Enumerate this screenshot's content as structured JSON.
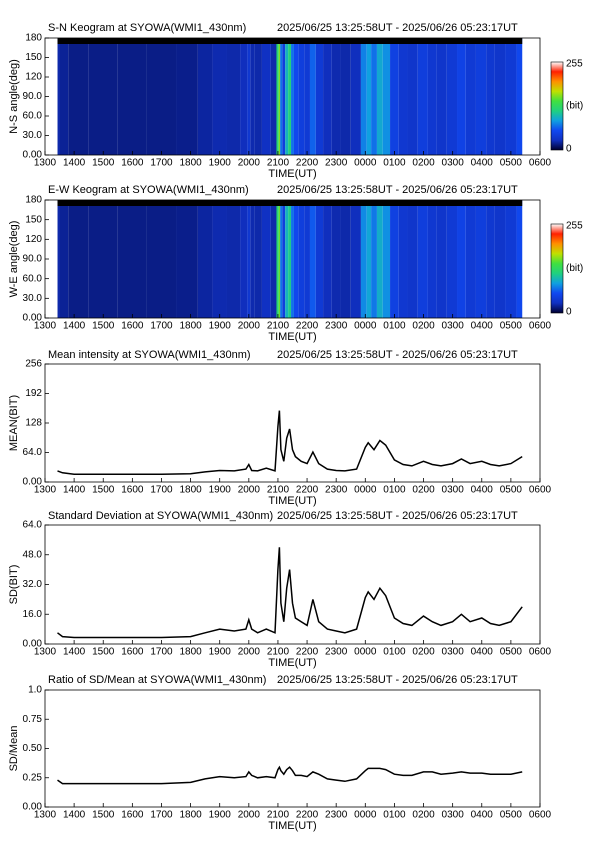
{
  "chart_data": [
    {
      "type": "heatmap",
      "title": "S-N Keogram at SYOWA(WMI1_430nm)",
      "time_range": "2025/06/25 13:25:58UT - 2025/06/26 05:23:17UT",
      "xlabel": "TIME(UT)",
      "ylabel": "N-S angle(deg)",
      "colorbar_label": "(bit)",
      "xlim": [
        13,
        30
      ],
      "ylim": [
        0,
        180
      ],
      "clim": [
        0,
        255
      ],
      "colorscale": [
        "#000030",
        "#1030c0",
        "#1048f0",
        "#10a0e0",
        "#20d080",
        "#40e040",
        "#c0e000",
        "#ff9000",
        "#ff2000",
        "#ffffff"
      ],
      "xticks": [
        {
          "value": 13,
          "label": "1300"
        },
        {
          "value": 14,
          "label": "1400"
        },
        {
          "value": 15,
          "label": "1500"
        },
        {
          "value": 16,
          "label": "1600"
        },
        {
          "value": 17,
          "label": "1700"
        },
        {
          "value": 18,
          "label": "1800"
        },
        {
          "value": 19,
          "label": "1900"
        },
        {
          "value": 20,
          "label": "2000"
        },
        {
          "value": 21,
          "label": "2100"
        },
        {
          "value": 22,
          "label": "2200"
        },
        {
          "value": 23,
          "label": "2300"
        },
        {
          "value": 24,
          "label": "0000"
        },
        {
          "value": 25,
          "label": "0100"
        },
        {
          "value": 26,
          "label": "0200"
        },
        {
          "value": 27,
          "label": "0300"
        },
        {
          "value": 28,
          "label": "0400"
        },
        {
          "value": 29,
          "label": "0500"
        },
        {
          "value": 30,
          "label": "0600"
        }
      ],
      "yticks": [
        {
          "value": 0,
          "label": "0.00"
        },
        {
          "value": 30,
          "label": "30.0"
        },
        {
          "value": 60,
          "label": "60.0"
        },
        {
          "value": 90,
          "label": "90.0"
        },
        120,
        150,
        180
      ],
      "x": [
        13.43,
        13.6,
        14,
        15,
        16,
        17,
        18,
        18.5,
        19,
        19.5,
        19.9,
        20.0,
        20.1,
        20.3,
        20.6,
        20.9,
        21.0,
        21.05,
        21.1,
        21.2,
        21.3,
        21.4,
        21.5,
        21.6,
        21.8,
        22.0,
        22.2,
        22.4,
        22.7,
        23.0,
        23.3,
        23.7,
        24.0,
        24.1,
        24.3,
        24.5,
        24.7,
        25.0,
        25.3,
        25.6,
        26.0,
        26.3,
        26.6,
        27.0,
        27.3,
        27.6,
        28.0,
        28.3,
        28.6,
        29.0,
        29.39
      ],
      "values": [
        24,
        20,
        17,
        17,
        17,
        17,
        18,
        22,
        25,
        24,
        28,
        38,
        25,
        24,
        30,
        24,
        120,
        155,
        70,
        45,
        95,
        115,
        70,
        55,
        45,
        40,
        65,
        40,
        28,
        25,
        24,
        28,
        75,
        85,
        70,
        90,
        80,
        48,
        38,
        35,
        45,
        38,
        35,
        40,
        50,
        40,
        45,
        38,
        35,
        40,
        55
      ]
    },
    {
      "type": "heatmap",
      "title": "E-W Keogram at SYOWA(WMI1_430nm)",
      "time_range": "2025/06/25 13:25:58UT - 2025/06/26 05:23:17UT",
      "xlabel": "TIME(UT)",
      "ylabel": "W-E angle(deg)",
      "colorbar_label": "(bit)",
      "xlim": [
        13,
        30
      ],
      "ylim": [
        0,
        180
      ],
      "clim": [
        0,
        255
      ],
      "colorscale": [
        "#000030",
        "#1030c0",
        "#1048f0",
        "#10a0e0",
        "#20d080",
        "#40e040",
        "#c0e000",
        "#ff9000",
        "#ff2000",
        "#ffffff"
      ],
      "xticks": [
        {
          "value": 13,
          "label": "1300"
        },
        {
          "value": 14,
          "label": "1400"
        },
        {
          "value": 15,
          "label": "1500"
        },
        {
          "value": 16,
          "label": "1600"
        },
        {
          "value": 17,
          "label": "1700"
        },
        {
          "value": 18,
          "label": "1800"
        },
        {
          "value": 19,
          "label": "1900"
        },
        {
          "value": 20,
          "label": "2000"
        },
        {
          "value": 21,
          "label": "2100"
        },
        {
          "value": 22,
          "label": "2200"
        },
        {
          "value": 23,
          "label": "2300"
        },
        {
          "value": 24,
          "label": "0000"
        },
        {
          "value": 25,
          "label": "0100"
        },
        {
          "value": 26,
          "label": "0200"
        },
        {
          "value": 27,
          "label": "0300"
        },
        {
          "value": 28,
          "label": "0400"
        },
        {
          "value": 29,
          "label": "0500"
        },
        {
          "value": 30,
          "label": "0600"
        }
      ],
      "yticks": [
        {
          "value": 0,
          "label": "0.00"
        },
        {
          "value": 30,
          "label": "30.0"
        },
        {
          "value": 60,
          "label": "60.0"
        },
        {
          "value": 90,
          "label": "90.0"
        },
        120,
        150,
        180
      ],
      "x": [
        13.43,
        13.6,
        14,
        15,
        16,
        17,
        18,
        18.5,
        19,
        19.5,
        19.9,
        20.0,
        20.1,
        20.3,
        20.6,
        20.9,
        21.0,
        21.05,
        21.1,
        21.2,
        21.3,
        21.4,
        21.5,
        21.6,
        21.8,
        22.0,
        22.2,
        22.4,
        22.7,
        23.0,
        23.3,
        23.7,
        24.0,
        24.1,
        24.3,
        24.5,
        24.7,
        25.0,
        25.3,
        25.6,
        26.0,
        26.3,
        26.6,
        27.0,
        27.3,
        27.6,
        28.0,
        28.3,
        28.6,
        29.0,
        29.39
      ],
      "values": [
        24,
        20,
        17,
        17,
        17,
        17,
        18,
        22,
        25,
        24,
        28,
        38,
        25,
        24,
        30,
        24,
        120,
        150,
        70,
        45,
        95,
        110,
        70,
        55,
        45,
        40,
        62,
        40,
        28,
        25,
        24,
        28,
        78,
        88,
        72,
        92,
        80,
        48,
        38,
        35,
        45,
        38,
        35,
        40,
        50,
        40,
        45,
        38,
        35,
        40,
        55
      ]
    },
    {
      "type": "line",
      "title": "Mean intensity at SYOWA(WMI1_430nm)",
      "time_range": "2025/06/25 13:25:58UT - 2025/06/26 05:23:17UT",
      "xlabel": "TIME(UT)",
      "ylabel": "MEAN(BIT)",
      "color": "#000000",
      "xlim": [
        13,
        30
      ],
      "ylim": [
        0,
        256
      ],
      "xticks": [
        {
          "value": 13,
          "label": "1300"
        },
        {
          "value": 14,
          "label": "1400"
        },
        {
          "value": 15,
          "label": "1500"
        },
        {
          "value": 16,
          "label": "1600"
        },
        {
          "value": 17,
          "label": "1700"
        },
        {
          "value": 18,
          "label": "1800"
        },
        {
          "value": 19,
          "label": "1900"
        },
        {
          "value": 20,
          "label": "2000"
        },
        {
          "value": 21,
          "label": "2100"
        },
        {
          "value": 22,
          "label": "2200"
        },
        {
          "value": 23,
          "label": "2300"
        },
        {
          "value": 24,
          "label": "0000"
        },
        {
          "value": 25,
          "label": "0100"
        },
        {
          "value": 26,
          "label": "0200"
        },
        {
          "value": 27,
          "label": "0300"
        },
        {
          "value": 28,
          "label": "0400"
        },
        {
          "value": 29,
          "label": "0500"
        },
        {
          "value": 30,
          "label": "0600"
        }
      ],
      "yticks": [
        {
          "value": 0,
          "label": "0.00"
        },
        {
          "value": 64,
          "label": "64.0"
        },
        128,
        192,
        256
      ],
      "x": [
        13.43,
        13.6,
        14,
        15,
        16,
        17,
        18,
        18.5,
        19,
        19.5,
        19.9,
        20.0,
        20.1,
        20.3,
        20.6,
        20.9,
        21.0,
        21.05,
        21.1,
        21.2,
        21.3,
        21.4,
        21.5,
        21.6,
        21.8,
        22.0,
        22.2,
        22.4,
        22.7,
        23.0,
        23.3,
        23.7,
        24.0,
        24.1,
        24.3,
        24.5,
        24.7,
        25.0,
        25.3,
        25.6,
        26.0,
        26.3,
        26.6,
        27.0,
        27.3,
        27.6,
        28.0,
        28.3,
        28.6,
        29.0,
        29.39
      ],
      "values": [
        24,
        20,
        17,
        17,
        17,
        17,
        18,
        22,
        25,
        24,
        28,
        38,
        25,
        24,
        30,
        24,
        120,
        155,
        70,
        45,
        95,
        115,
        70,
        55,
        45,
        40,
        65,
        40,
        28,
        25,
        24,
        28,
        75,
        85,
        70,
        90,
        80,
        48,
        38,
        35,
        45,
        38,
        35,
        40,
        50,
        40,
        45,
        38,
        35,
        40,
        55
      ]
    },
    {
      "type": "line",
      "title": "Standard Deviation at SYOWA(WMI1_430nm)",
      "time_range": "2025/06/25 13:25:58UT - 2025/06/26 05:23:17UT",
      "xlabel": "TIME(UT)",
      "ylabel": "SD(BIT)",
      "color": "#000000",
      "xlim": [
        13,
        30
      ],
      "ylim": [
        0,
        64
      ],
      "xticks": [
        {
          "value": 13,
          "label": "1300"
        },
        {
          "value": 14,
          "label": "1400"
        },
        {
          "value": 15,
          "label": "1500"
        },
        {
          "value": 16,
          "label": "1600"
        },
        {
          "value": 17,
          "label": "1700"
        },
        {
          "value": 18,
          "label": "1800"
        },
        {
          "value": 19,
          "label": "1900"
        },
        {
          "value": 20,
          "label": "2000"
        },
        {
          "value": 21,
          "label": "2100"
        },
        {
          "value": 22,
          "label": "2200"
        },
        {
          "value": 23,
          "label": "2300"
        },
        {
          "value": 24,
          "label": "0000"
        },
        {
          "value": 25,
          "label": "0100"
        },
        {
          "value": 26,
          "label": "0200"
        },
        {
          "value": 27,
          "label": "0300"
        },
        {
          "value": 28,
          "label": "0400"
        },
        {
          "value": 29,
          "label": "0500"
        },
        {
          "value": 30,
          "label": "0600"
        }
      ],
      "yticks": [
        {
          "value": 0,
          "label": "0.00"
        },
        {
          "value": 16,
          "label": "16.0"
        },
        {
          "value": 32,
          "label": "32.0"
        },
        {
          "value": 48,
          "label": "48.0"
        },
        {
          "value": 64,
          "label": "64.0"
        }
      ],
      "x": [
        13.43,
        13.6,
        14,
        15,
        16,
        17,
        18,
        18.5,
        19,
        19.5,
        19.9,
        20.0,
        20.1,
        20.3,
        20.6,
        20.9,
        21.0,
        21.05,
        21.1,
        21.2,
        21.3,
        21.4,
        21.5,
        21.6,
        21.8,
        22.0,
        22.2,
        22.4,
        22.7,
        23.0,
        23.3,
        23.7,
        24.0,
        24.1,
        24.3,
        24.5,
        24.7,
        25.0,
        25.3,
        25.6,
        26.0,
        26.3,
        26.6,
        27.0,
        27.3,
        27.6,
        28.0,
        28.3,
        28.6,
        29.0,
        29.39
      ],
      "values": [
        6,
        4,
        3.5,
        3.5,
        3.5,
        3.5,
        4,
        6,
        8,
        7,
        8,
        13,
        8,
        6,
        8,
        6,
        40,
        52,
        22,
        12,
        30,
        40,
        22,
        14,
        12,
        10,
        24,
        12,
        8,
        7,
        6,
        8,
        25,
        28,
        24,
        30,
        26,
        14,
        11,
        10,
        15,
        12,
        10,
        12,
        16,
        12,
        14,
        11,
        10,
        12,
        20
      ]
    },
    {
      "type": "line",
      "title": "Ratio of SD/Mean at SYOWA(WMI1_430nm)",
      "time_range": "2025/06/25 13:25:58UT - 2025/06/26 05:23:17UT",
      "xlabel": "TIME(UT)",
      "ylabel": "SD/Mean",
      "color": "#000000",
      "xlim": [
        13,
        30
      ],
      "ylim": [
        0,
        1
      ],
      "xticks": [
        {
          "value": 13,
          "label": "1300"
        },
        {
          "value": 14,
          "label": "1400"
        },
        {
          "value": 15,
          "label": "1500"
        },
        {
          "value": 16,
          "label": "1600"
        },
        {
          "value": 17,
          "label": "1700"
        },
        {
          "value": 18,
          "label": "1800"
        },
        {
          "value": 19,
          "label": "1900"
        },
        {
          "value": 20,
          "label": "2000"
        },
        {
          "value": 21,
          "label": "2100"
        },
        {
          "value": 22,
          "label": "2200"
        },
        {
          "value": 23,
          "label": "2300"
        },
        {
          "value": 24,
          "label": "0000"
        },
        {
          "value": 25,
          "label": "0100"
        },
        {
          "value": 26,
          "label": "0200"
        },
        {
          "value": 27,
          "label": "0300"
        },
        {
          "value": 28,
          "label": "0400"
        },
        {
          "value": 29,
          "label": "0500"
        },
        {
          "value": 30,
          "label": "0600"
        }
      ],
      "yticks": [
        {
          "value": 0,
          "label": "0.00"
        },
        0.25,
        {
          "value": 0.5,
          "label": "0.50"
        },
        0.75,
        {
          "value": 1,
          "label": "1.0"
        }
      ],
      "x": [
        13.43,
        13.6,
        14,
        15,
        16,
        17,
        18,
        18.5,
        19,
        19.5,
        19.9,
        20.0,
        20.1,
        20.3,
        20.6,
        20.9,
        21.0,
        21.05,
        21.1,
        21.2,
        21.3,
        21.4,
        21.5,
        21.6,
        21.8,
        22.0,
        22.2,
        22.4,
        22.7,
        23.0,
        23.3,
        23.7,
        24.0,
        24.1,
        24.3,
        24.5,
        24.7,
        25.0,
        25.3,
        25.6,
        26.0,
        26.3,
        26.6,
        27.0,
        27.3,
        27.6,
        28.0,
        28.3,
        28.6,
        29.0,
        29.39
      ],
      "values": [
        0.23,
        0.2,
        0.2,
        0.2,
        0.2,
        0.2,
        0.21,
        0.24,
        0.26,
        0.25,
        0.26,
        0.3,
        0.27,
        0.25,
        0.26,
        0.25,
        0.32,
        0.34,
        0.31,
        0.28,
        0.32,
        0.34,
        0.31,
        0.27,
        0.27,
        0.26,
        0.3,
        0.28,
        0.24,
        0.23,
        0.22,
        0.24,
        0.31,
        0.33,
        0.33,
        0.33,
        0.32,
        0.28,
        0.27,
        0.27,
        0.3,
        0.3,
        0.28,
        0.29,
        0.3,
        0.29,
        0.29,
        0.28,
        0.28,
        0.28,
        0.3
      ]
    }
  ]
}
